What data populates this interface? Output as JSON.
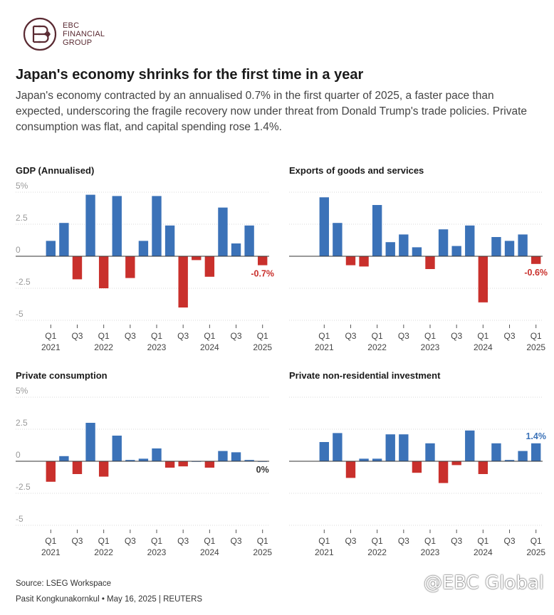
{
  "brand": {
    "line1": "EBC",
    "line2": "FINANCIAL",
    "line3": "GROUP"
  },
  "title": "Japan's economy shrinks for the first time in a year",
  "subtitle": "Japan's economy contracted by an annualised 0.7% in the first quarter of 2025, a faster pace than expected, underscoring the fragile recovery now under threat from Donald Trump's trade policies. Private consumption was flat, and capital spending rose 1.4%.",
  "colors": {
    "positive": "#3b72b8",
    "negative": "#c9302c",
    "grid": "#d9d9d9",
    "axis": "#bfbfbf",
    "tick_text": "#9a9a9a"
  },
  "chart_data": [
    {
      "type": "bar",
      "title": "GDP (Annualised)",
      "categories": [
        "Q1 2021",
        "Q2 2021",
        "Q3 2021",
        "Q4 2021",
        "Q1 2022",
        "Q2 2022",
        "Q3 2022",
        "Q4 2022",
        "Q1 2023",
        "Q2 2023",
        "Q3 2023",
        "Q4 2023",
        "Q1 2024",
        "Q2 2024",
        "Q3 2024",
        "Q4 2024",
        "Q1 2025"
      ],
      "values": [
        1.2,
        2.6,
        -1.8,
        4.8,
        -2.5,
        4.7,
        -1.7,
        1.2,
        4.7,
        2.4,
        -4.0,
        -0.3,
        -1.6,
        3.8,
        1.0,
        2.4,
        -0.7
      ],
      "ylim": [
        -5,
        5
      ],
      "yticks": [
        "5%",
        "2.5",
        "0",
        "-2.5",
        "-5"
      ],
      "ytick_values": [
        5,
        2.5,
        0,
        -2.5,
        -5
      ],
      "x_tick_labels": [
        {
          "index": 0,
          "top": "Q1",
          "bottom": "2021"
        },
        {
          "index": 2,
          "top": "Q3",
          "bottom": ""
        },
        {
          "index": 4,
          "top": "Q1",
          "bottom": "2022"
        },
        {
          "index": 6,
          "top": "Q3",
          "bottom": ""
        },
        {
          "index": 8,
          "top": "Q1",
          "bottom": "2023"
        },
        {
          "index": 10,
          "top": "Q3",
          "bottom": ""
        },
        {
          "index": 12,
          "top": "Q1",
          "bottom": "2024"
        },
        {
          "index": 14,
          "top": "Q3",
          "bottom": ""
        },
        {
          "index": 16,
          "top": "Q1",
          "bottom": "2025"
        }
      ],
      "annotation": "-0.7%"
    },
    {
      "type": "bar",
      "title": "Exports of goods and services",
      "categories": [
        "Q1 2021",
        "Q2 2021",
        "Q3 2021",
        "Q4 2021",
        "Q1 2022",
        "Q2 2022",
        "Q3 2022",
        "Q4 2022",
        "Q1 2023",
        "Q2 2023",
        "Q3 2023",
        "Q4 2023",
        "Q1 2024",
        "Q2 2024",
        "Q3 2024",
        "Q4 2024",
        "Q1 2025"
      ],
      "values": [
        4.6,
        2.6,
        -0.7,
        -0.8,
        4.0,
        1.1,
        1.7,
        0.7,
        -1.0,
        2.1,
        0.8,
        2.4,
        -3.6,
        1.5,
        1.2,
        1.7,
        -0.6
      ],
      "ylim": [
        -5,
        5
      ],
      "yticks": [],
      "ytick_values": [
        5,
        2.5,
        0,
        -2.5,
        -5
      ],
      "x_tick_labels": [
        {
          "index": 0,
          "top": "Q1",
          "bottom": "2021"
        },
        {
          "index": 2,
          "top": "Q3",
          "bottom": ""
        },
        {
          "index": 4,
          "top": "Q1",
          "bottom": "2022"
        },
        {
          "index": 6,
          "top": "Q3",
          "bottom": ""
        },
        {
          "index": 8,
          "top": "Q1",
          "bottom": "2023"
        },
        {
          "index": 10,
          "top": "Q3",
          "bottom": ""
        },
        {
          "index": 12,
          "top": "Q1",
          "bottom": "2024"
        },
        {
          "index": 14,
          "top": "Q3",
          "bottom": ""
        },
        {
          "index": 16,
          "top": "Q1",
          "bottom": "2025"
        }
      ],
      "annotation": "-0.6%"
    },
    {
      "type": "bar",
      "title": "Private consumption",
      "categories": [
        "Q1 2021",
        "Q2 2021",
        "Q3 2021",
        "Q4 2021",
        "Q1 2022",
        "Q2 2022",
        "Q3 2022",
        "Q4 2022",
        "Q1 2023",
        "Q2 2023",
        "Q3 2023",
        "Q4 2023",
        "Q1 2024",
        "Q2 2024",
        "Q3 2024",
        "Q4 2024",
        "Q1 2025"
      ],
      "values": [
        -1.6,
        0.4,
        -1.0,
        3.0,
        -1.2,
        2.0,
        0.1,
        0.2,
        1.0,
        -0.5,
        -0.4,
        0.0,
        -0.5,
        0.8,
        0.7,
        0.1,
        0.0
      ],
      "ylim": [
        -5,
        5
      ],
      "yticks": [
        "5%",
        "2.5",
        "0",
        "-2.5",
        "-5"
      ],
      "ytick_values": [
        5,
        2.5,
        0,
        -2.5,
        -5
      ],
      "x_tick_labels": [
        {
          "index": 0,
          "top": "Q1",
          "bottom": "2021"
        },
        {
          "index": 2,
          "top": "Q3",
          "bottom": ""
        },
        {
          "index": 4,
          "top": "Q1",
          "bottom": "2022"
        },
        {
          "index": 6,
          "top": "Q3",
          "bottom": ""
        },
        {
          "index": 8,
          "top": "Q1",
          "bottom": "2023"
        },
        {
          "index": 10,
          "top": "Q3",
          "bottom": ""
        },
        {
          "index": 12,
          "top": "Q1",
          "bottom": "2024"
        },
        {
          "index": 14,
          "top": "Q3",
          "bottom": ""
        },
        {
          "index": 16,
          "top": "Q1",
          "bottom": "2025"
        }
      ],
      "annotation": "0%"
    },
    {
      "type": "bar",
      "title": "Private non-residential investment",
      "categories": [
        "Q1 2021",
        "Q2 2021",
        "Q3 2021",
        "Q4 2021",
        "Q1 2022",
        "Q2 2022",
        "Q3 2022",
        "Q4 2022",
        "Q1 2023",
        "Q2 2023",
        "Q3 2023",
        "Q4 2023",
        "Q1 2024",
        "Q2 2024",
        "Q3 2024",
        "Q4 2024",
        "Q1 2025"
      ],
      "values": [
        1.5,
        2.2,
        -1.3,
        0.2,
        0.2,
        2.1,
        2.1,
        -0.9,
        1.4,
        -1.7,
        -0.3,
        2.4,
        -1.0,
        1.4,
        0.1,
        0.8,
        1.4
      ],
      "ylim": [
        -5,
        5
      ],
      "yticks": [],
      "ytick_values": [
        5,
        2.5,
        0,
        -2.5,
        -5
      ],
      "x_tick_labels": [
        {
          "index": 0,
          "top": "Q1",
          "bottom": "2021"
        },
        {
          "index": 2,
          "top": "Q3",
          "bottom": ""
        },
        {
          "index": 4,
          "top": "Q1",
          "bottom": "2022"
        },
        {
          "index": 6,
          "top": "Q3",
          "bottom": ""
        },
        {
          "index": 8,
          "top": "Q1",
          "bottom": "2023"
        },
        {
          "index": 10,
          "top": "Q3",
          "bottom": ""
        },
        {
          "index": 12,
          "top": "Q1",
          "bottom": "2024"
        },
        {
          "index": 14,
          "top": "Q3",
          "bottom": ""
        },
        {
          "index": 16,
          "top": "Q1",
          "bottom": "2025"
        }
      ],
      "annotation": "1.4%"
    }
  ],
  "footer": {
    "source": "Source: LSEG Workspace",
    "credit": "Pasit Kongkunakornkul • May 16, 2025 | REUTERS"
  },
  "watermark": "@EBC Global"
}
